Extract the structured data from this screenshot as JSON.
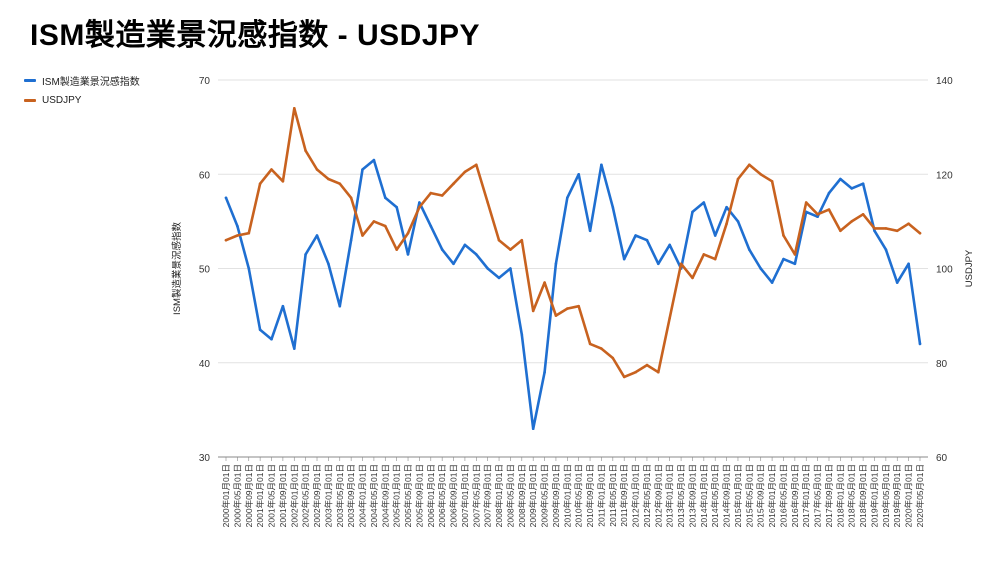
{
  "chart_data": {
    "type": "line",
    "title": "ISM製造業景況感指数 - USDJPY",
    "xlabel": "",
    "ylabel_left": "ISM製造業景況感指数",
    "ylabel_right": "USDJPY",
    "ylim_left": [
      30,
      70
    ],
    "ylim_right": [
      60,
      140
    ],
    "yticks_left": [
      "30",
      "40",
      "50",
      "60",
      "70"
    ],
    "yticks_right": [
      "60",
      "80",
      "100",
      "120",
      "140"
    ],
    "categories": [
      "2000年01月01日",
      "2000年05月01日",
      "2000年09月01日",
      "2001年01月01日",
      "2001年05月01日",
      "2001年09月01日",
      "2002年01月01日",
      "2002年05月01日",
      "2002年09月01日",
      "2003年01月01日",
      "2003年05月01日",
      "2003年09月01日",
      "2004年01月01日",
      "2004年05月01日",
      "2004年09月01日",
      "2005年01月01日",
      "2005年05月01日",
      "2005年09月01日",
      "2006年01月01日",
      "2006年05月01日",
      "2006年09月01日",
      "2007年01月01日",
      "2007年05月01日",
      "2007年09月01日",
      "2008年01月01日",
      "2008年05月01日",
      "2008年09月01日",
      "2009年01月01日",
      "2009年05月01日",
      "2009年09月01日",
      "2010年01月01日",
      "2010年05月01日",
      "2010年09月01日",
      "2011年01月01日",
      "2011年05月01日",
      "2011年09月01日",
      "2012年01月01日",
      "2012年05月01日",
      "2012年09月01日",
      "2013年01月01日",
      "2013年05月01日",
      "2013年09月01日",
      "2014年01月01日",
      "2014年05月01日",
      "2014年09月01日",
      "2015年01月01日",
      "2015年05月01日",
      "2015年09月01日",
      "2016年01月01日",
      "2016年05月01日",
      "2016年09月01日",
      "2017年01月01日",
      "2017年05月01日",
      "2017年09月01日",
      "2018年01月01日",
      "2018年05月01日",
      "2018年09月01日",
      "2019年01月01日",
      "2019年05月01日",
      "2019年09月01日",
      "2020年01月01日",
      "2020年05月01日"
    ],
    "series": [
      {
        "name": "ISM製造業景況感指数",
        "axis": "left",
        "color": "#1f6fd1",
        "values": [
          57.5,
          54.5,
          50.0,
          43.5,
          42.5,
          46.0,
          41.5,
          51.5,
          53.5,
          50.5,
          46.0,
          53.0,
          60.5,
          61.5,
          57.5,
          56.5,
          51.5,
          57.0,
          54.5,
          52.0,
          50.5,
          52.5,
          51.5,
          50.0,
          49.0,
          50.0,
          43.0,
          33.0,
          39.0,
          50.5,
          57.5,
          60.0,
          54.0,
          61.0,
          56.5,
          51.0,
          53.5,
          53.0,
          50.5,
          52.5,
          50.0,
          56.0,
          57.0,
          53.5,
          56.5,
          55.0,
          52.0,
          50.0,
          48.5,
          51.0,
          50.5,
          56.0,
          55.5,
          58.0,
          59.5,
          58.5,
          59.0,
          54.0,
          52.0,
          48.5,
          50.5,
          42.0
        ]
      },
      {
        "name": "USDJPY",
        "axis": "right",
        "color": "#c8621f",
        "values": [
          106.0,
          107.0,
          107.5,
          118.0,
          121.0,
          118.5,
          134.0,
          125.0,
          121.0,
          119.0,
          118.0,
          115.0,
          107.0,
          110.0,
          109.0,
          104.0,
          107.5,
          113.0,
          116.0,
          115.5,
          118.0,
          120.5,
          122.0,
          114.0,
          106.0,
          104.0,
          106.0,
          91.0,
          97.0,
          90.0,
          91.5,
          92.0,
          84.0,
          83.0,
          81.0,
          77.0,
          78.0,
          79.5,
          78.0,
          89.5,
          101.0,
          98.0,
          103.0,
          102.0,
          109.5,
          119.0,
          122.0,
          120.0,
          118.5,
          107.0,
          103.0,
          114.0,
          111.5,
          112.5,
          108.0,
          110.0,
          111.5,
          108.5,
          108.5,
          108.0,
          109.5,
          107.5
        ]
      }
    ]
  }
}
